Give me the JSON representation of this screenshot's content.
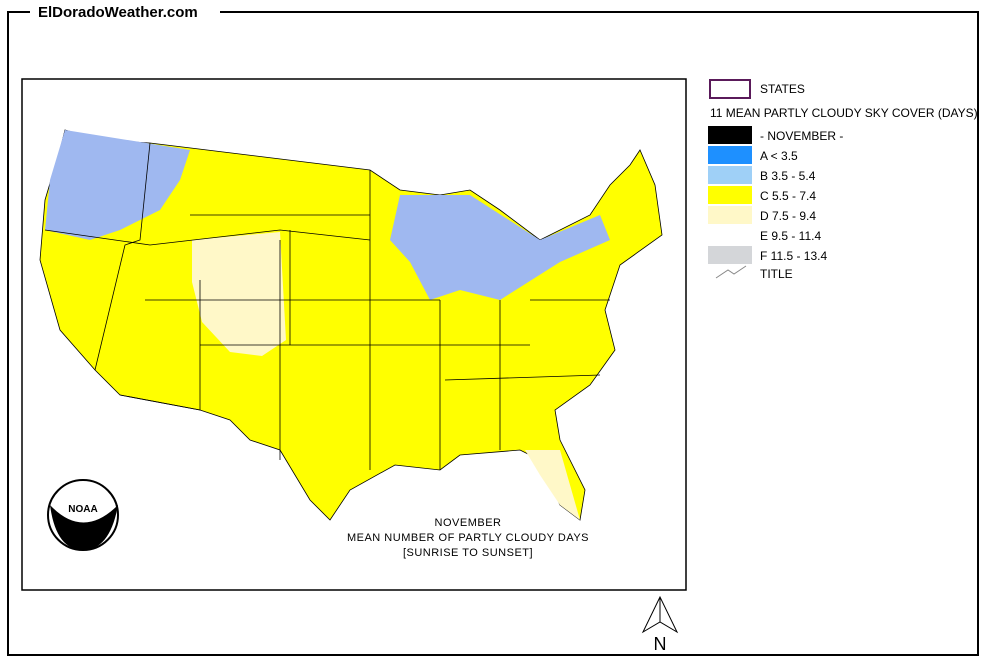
{
  "header": {
    "site": "ElDoradoWeather.com"
  },
  "legend": {
    "states": "STATES",
    "title": "11 MEAN PARTLY CLOUDY SKY COVER (DAYS)",
    "items": [
      {
        "label": "- NOVEMBER -",
        "color": "#000000"
      },
      {
        "label": "A < 3.5",
        "color": "#1e90ff"
      },
      {
        "label": "B 3.5 - 5.4",
        "color": "#9fd0f7"
      },
      {
        "label": "C 5.5 - 7.4",
        "color": "#ffff00"
      },
      {
        "label": "D 7.5 - 9.4",
        "color": "#fff8c8"
      },
      {
        "label": "E 9.5 - 11.4",
        "color": "#ffffff"
      },
      {
        "label": "F 11.5 - 13.4",
        "color": "#d4d6d9"
      }
    ],
    "map_title": "TITLE"
  },
  "logo": {
    "text": "NOAA"
  },
  "caption": {
    "lines": [
      "NOVEMBER",
      "MEAN NUMBER OF PARTLY CLOUDY DAYS",
      "[SUNRISE TO SUNSET]"
    ]
  },
  "north": "N"
}
